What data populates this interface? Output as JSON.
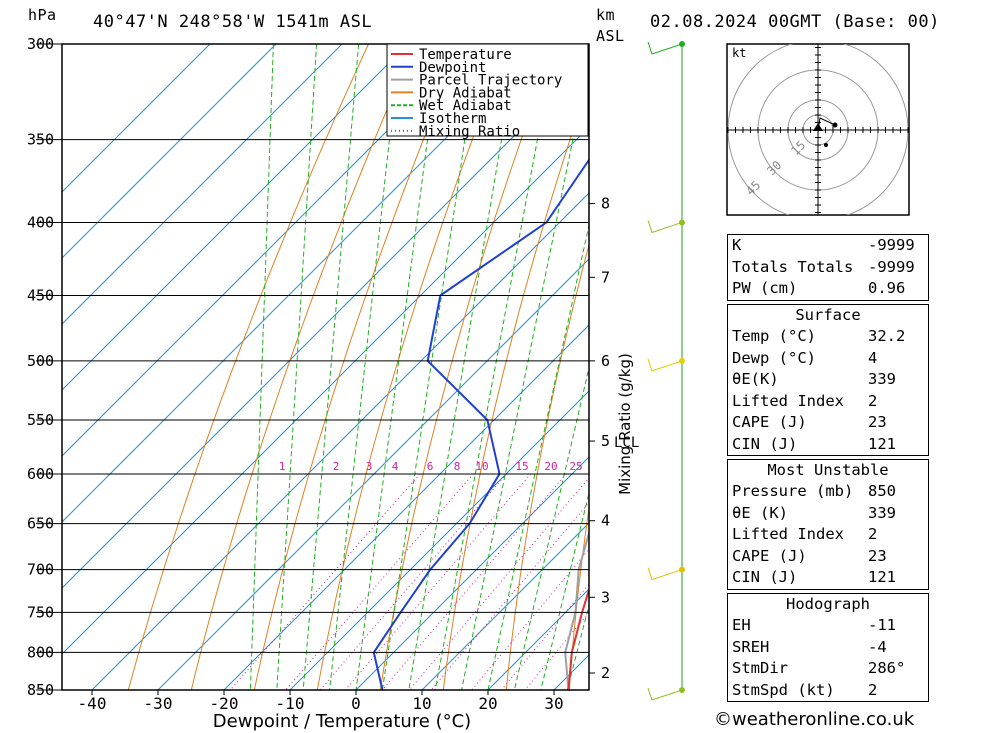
{
  "header": {
    "pressure_unit": "hPa",
    "location": "40°47'N  248°58'W  1541m  ASL",
    "km_label": "km",
    "asl_label": "ASL",
    "datetime": "02.08.2024  00GMT  (Base: 00)"
  },
  "chart_data": {
    "type": "line",
    "title": "",
    "xlabel": "Dewpoint / Temperature (°C)",
    "ylabel": "Mixing Ratio (g/kg)",
    "x_ticks": [
      -40,
      -30,
      -20,
      -10,
      0,
      10,
      20,
      30
    ],
    "pressure_levels": [
      300,
      350,
      400,
      450,
      500,
      550,
      600,
      650,
      700,
      750,
      800,
      850
    ],
    "ylim_hpa": [
      850,
      300
    ],
    "xlim_c": [
      -45,
      35
    ],
    "skew": "skew-T log-p",
    "km_ticks": [
      {
        "label": "8",
        "p": 388
      },
      {
        "label": "7",
        "p": 437
      },
      {
        "label": "6",
        "p": 500
      },
      {
        "label": "5",
        "p": 569
      },
      {
        "label": "4",
        "p": 647
      },
      {
        "label": "3",
        "p": 732
      },
      {
        "label": "2",
        "p": 827
      }
    ],
    "lcl_label": "LCL",
    "lcl_p": 570,
    "mixing_ratio_labels": [
      "1",
      "2",
      "3",
      "4",
      "6",
      "8",
      "10",
      "15",
      "20",
      "25"
    ],
    "legend": {
      "position": "top-right",
      "items": [
        {
          "label": "Temperature",
          "color": "#e03030",
          "style": "solid"
        },
        {
          "label": "Dewpoint",
          "color": "#2040d0",
          "style": "solid"
        },
        {
          "label": "Parcel Trajectory",
          "color": "#a0a0a0",
          "style": "solid"
        },
        {
          "label": "Dry Adiabat",
          "color": "#e08020",
          "style": "solid"
        },
        {
          "label": "Wet Adiabat",
          "color": "#20b020",
          "style": "dashed"
        },
        {
          "label": "Isotherm",
          "color": "#2090e0",
          "style": "solid"
        },
        {
          "label": "Mixing Ratio",
          "color": "#d020a0",
          "style": "dotted"
        }
      ]
    },
    "series": [
      {
        "name": "Temperature",
        "points": [
          [
            300,
            -35
          ],
          [
            350,
            -26
          ],
          [
            400,
            -18
          ],
          [
            450,
            -10
          ],
          [
            500,
            -5
          ],
          [
            550,
            1
          ],
          [
            600,
            7
          ],
          [
            650,
            12.5
          ],
          [
            700,
            18
          ],
          [
            750,
            22.5
          ],
          [
            800,
            27
          ],
          [
            850,
            32.2
          ]
        ]
      },
      {
        "name": "Dewpoint",
        "points": [
          [
            300,
            -46
          ],
          [
            350,
            -46
          ],
          [
            400,
            -42
          ],
          [
            450,
            -47
          ],
          [
            500,
            -39
          ],
          [
            550,
            -21
          ],
          [
            600,
            -11
          ],
          [
            650,
            -8
          ],
          [
            700,
            -7
          ],
          [
            750,
            -5
          ],
          [
            800,
            -3
          ],
          [
            850,
            4
          ]
        ]
      },
      {
        "name": "Parcel Trajectory",
        "points": [
          [
            300,
            -33
          ],
          [
            350,
            -25
          ],
          [
            400,
            -17
          ],
          [
            450,
            -12
          ],
          [
            500,
            -7
          ],
          [
            550,
            -2
          ],
          [
            570,
            0
          ],
          [
            600,
            5
          ],
          [
            650,
            10.5
          ],
          [
            700,
            15.5
          ],
          [
            750,
            21.5
          ],
          [
            800,
            26
          ],
          [
            850,
            32.2
          ]
        ]
      }
    ],
    "wind_barb_levels": [
      300,
      400,
      500,
      700,
      850
    ]
  },
  "hodograph": {
    "unit": "kt",
    "ring_labels": [
      "15",
      "30",
      "45"
    ]
  },
  "indices": {
    "rows": [
      {
        "label": "K",
        "value": "-9999"
      },
      {
        "label": "Totals Totals",
        "value": "-9999"
      },
      {
        "label": "PW (cm)",
        "value": "0.96"
      }
    ]
  },
  "surface": {
    "title": "Surface",
    "rows": [
      {
        "label": "Temp (°C)",
        "value": "32.2"
      },
      {
        "label": "Dewp (°C)",
        "value": "4"
      },
      {
        "label": "θE(K)",
        "value": "339"
      },
      {
        "label": "Lifted Index",
        "value": "2"
      },
      {
        "label": "CAPE (J)",
        "value": "23"
      },
      {
        "label": "CIN (J)",
        "value": "121"
      }
    ]
  },
  "most_unstable": {
    "title": "Most Unstable",
    "rows": [
      {
        "label": "Pressure (mb)",
        "value": "850"
      },
      {
        "label": "θE (K)",
        "value": "339"
      },
      {
        "label": "Lifted Index",
        "value": "2"
      },
      {
        "label": "CAPE (J)",
        "value": "23"
      },
      {
        "label": "CIN (J)",
        "value": "121"
      }
    ]
  },
  "hodograph_table": {
    "title": "Hodograph",
    "rows": [
      {
        "label": "EH",
        "value": "-11"
      },
      {
        "label": "SREH",
        "value": "-4"
      },
      {
        "label": "StmDir",
        "value": "286°"
      },
      {
        "label": "StmSpd (kt)",
        "value": "2"
      }
    ]
  },
  "credit": "©weatheronline.co.uk"
}
